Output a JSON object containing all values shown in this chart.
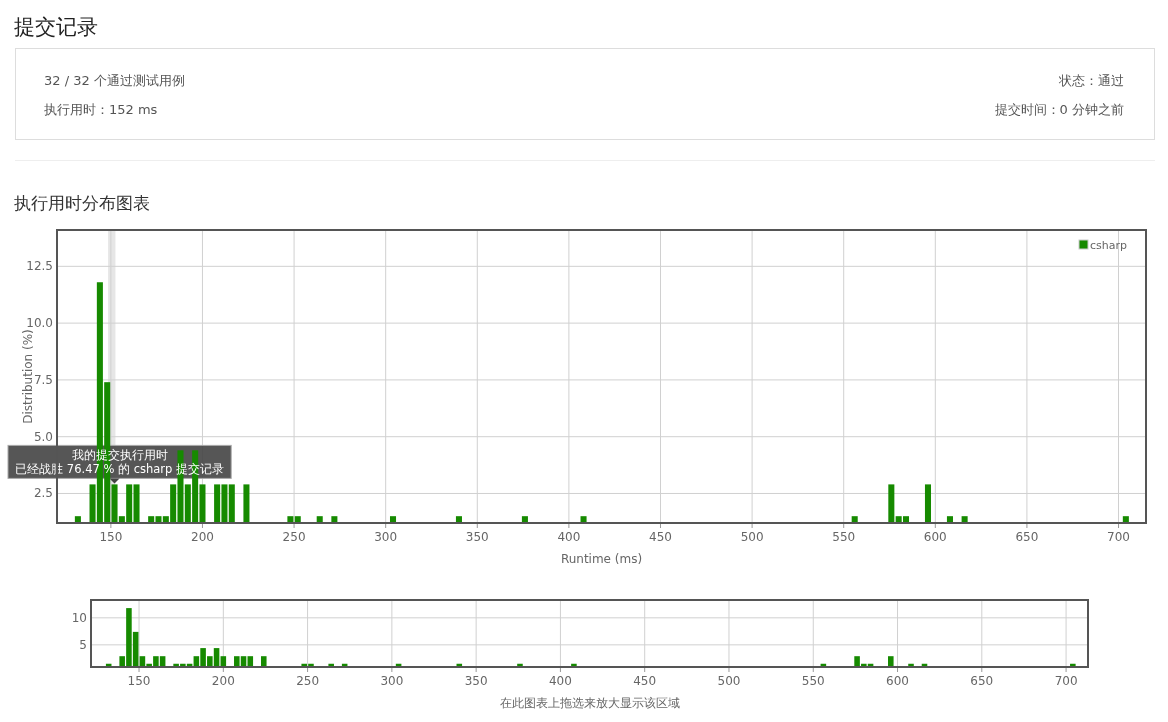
{
  "chart_data": [
    {
      "type": "other",
      "title": "提交记录",
      "annotations": [
        "32 / 32 个通过测试用例",
        "执行用时：152 ms",
        "状态：通过",
        "提交时间：0 分钟之前"
      ]
    },
    {
      "type": "bar",
      "title": "执行用时分布图表",
      "xlabel": "Runtime (ms)",
      "ylabel": "Distribution (%)",
      "x": [
        132,
        140,
        144,
        148,
        152,
        156,
        160,
        164,
        172,
        176,
        180,
        184,
        188,
        192,
        196,
        200,
        208,
        212,
        216,
        224,
        248,
        252,
        264,
        272,
        304,
        340,
        376,
        408,
        556,
        576,
        580,
        584,
        596,
        608,
        616,
        704
      ],
      "series": [
        {
          "name": "csharp",
          "color": "#168a00",
          "values": [
            1.5,
            2.9,
            11.8,
            7.4,
            2.9,
            1.5,
            2.9,
            2.9,
            1.5,
            1.5,
            1.5,
            2.9,
            4.4,
            2.9,
            4.4,
            2.9,
            2.9,
            2.9,
            2.9,
            2.9,
            1.5,
            1.5,
            1.5,
            1.5,
            1.5,
            1.5,
            1.5,
            1.5,
            1.5,
            2.9,
            1.5,
            1.5,
            2.9,
            1.5,
            1.5,
            1.5
          ]
        }
      ],
      "xlim": [
        120.6,
        715
      ],
      "ylim": [
        1.2,
        14.1
      ],
      "xticks": [
        150,
        200,
        250,
        300,
        350,
        400,
        450,
        500,
        550,
        600,
        650,
        700
      ],
      "yticks": [
        2.5,
        {
          "value": 5,
          "label": "5.0"
        },
        7.5,
        {
          "value": 10,
          "label": "10.0"
        },
        12.5
      ],
      "grid": true,
      "legend": "top right",
      "bands": [
        {
          "axis": "x",
          "from": 148.5,
          "to": 152.5,
          "color": "#e6e6e6"
        }
      ],
      "annotations": [
        {
          "text": "我的提交执行用时",
          "x": 152,
          "y": 2.9
        },
        {
          "text": "已经战胜 76.47 % 的 csharp 提交记录",
          "x": 152,
          "y": 2.9
        }
      ]
    },
    {
      "type": "bar",
      "xlabel": "在此图表上拖选来放大显示该区域",
      "x": [
        132,
        140,
        144,
        148,
        152,
        156,
        160,
        164,
        172,
        176,
        180,
        184,
        188,
        192,
        196,
        200,
        208,
        212,
        216,
        224,
        248,
        252,
        264,
        272,
        304,
        340,
        376,
        408,
        556,
        576,
        580,
        584,
        596,
        608,
        616,
        704
      ],
      "series": [
        {
          "color": "#168a00",
          "values": [
            1.5,
            2.9,
            11.8,
            7.4,
            2.9,
            1.5,
            2.9,
            2.9,
            1.5,
            1.5,
            1.5,
            2.9,
            4.4,
            2.9,
            4.4,
            2.9,
            2.9,
            2.9,
            2.9,
            2.9,
            1.5,
            1.5,
            1.5,
            1.5,
            1.5,
            1.5,
            1.5,
            1.5,
            1.5,
            2.9,
            1.5,
            1.5,
            2.9,
            1.5,
            1.5,
            1.5
          ]
        }
      ],
      "xlim": [
        121.5,
        713
      ],
      "ylim": [
        0.9,
        13.3
      ],
      "xticks": [
        150,
        200,
        250,
        300,
        350,
        400,
        450,
        500,
        550,
        600,
        650,
        700
      ],
      "yticks": [
        5,
        10
      ],
      "grid": true
    }
  ]
}
